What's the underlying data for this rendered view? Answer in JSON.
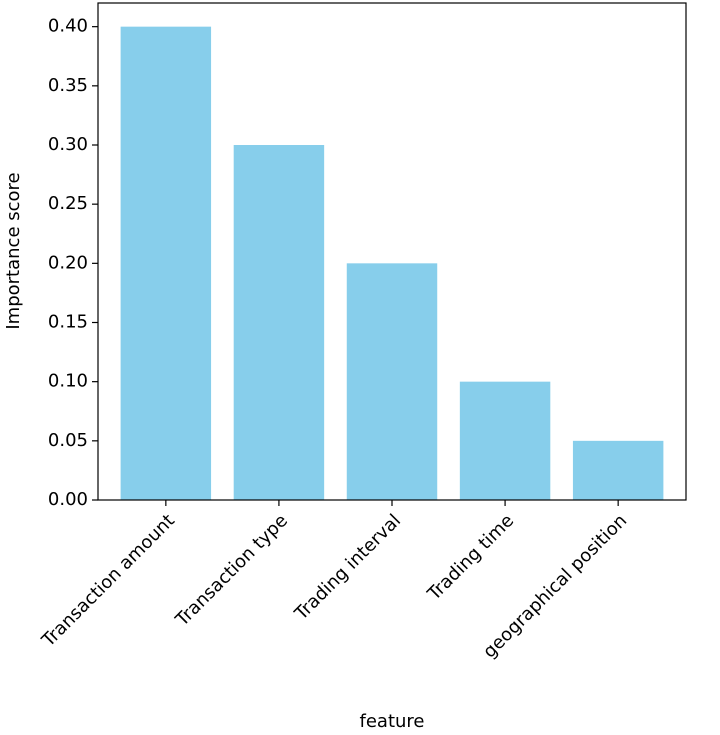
{
  "chart_data": {
    "type": "bar",
    "categories": [
      "Transaction amount",
      "Transaction type",
      "Trading interval",
      "Trading time",
      "geographical position"
    ],
    "values": [
      0.4,
      0.3,
      0.2,
      0.1,
      0.05
    ],
    "color": "#87ceeb",
    "x_label": "feature",
    "y_label": "Importance score",
    "ylim": [
      0,
      0.42
    ],
    "yticks": [
      {
        "value": 0,
        "label": "0.00"
      },
      {
        "value": 0.05,
        "label": "0.05"
      },
      {
        "value": 0.1,
        "label": "0.10"
      },
      {
        "value": 0.15,
        "label": "0.15"
      },
      {
        "value": 0.2,
        "label": "0.20"
      },
      {
        "value": 0.25,
        "label": "0.25"
      },
      {
        "value": 0.3,
        "label": "0.30"
      },
      {
        "value": 0.35,
        "label": "0.35"
      },
      {
        "value": 0.4,
        "label": "0.40"
      }
    ],
    "grid": false
  }
}
